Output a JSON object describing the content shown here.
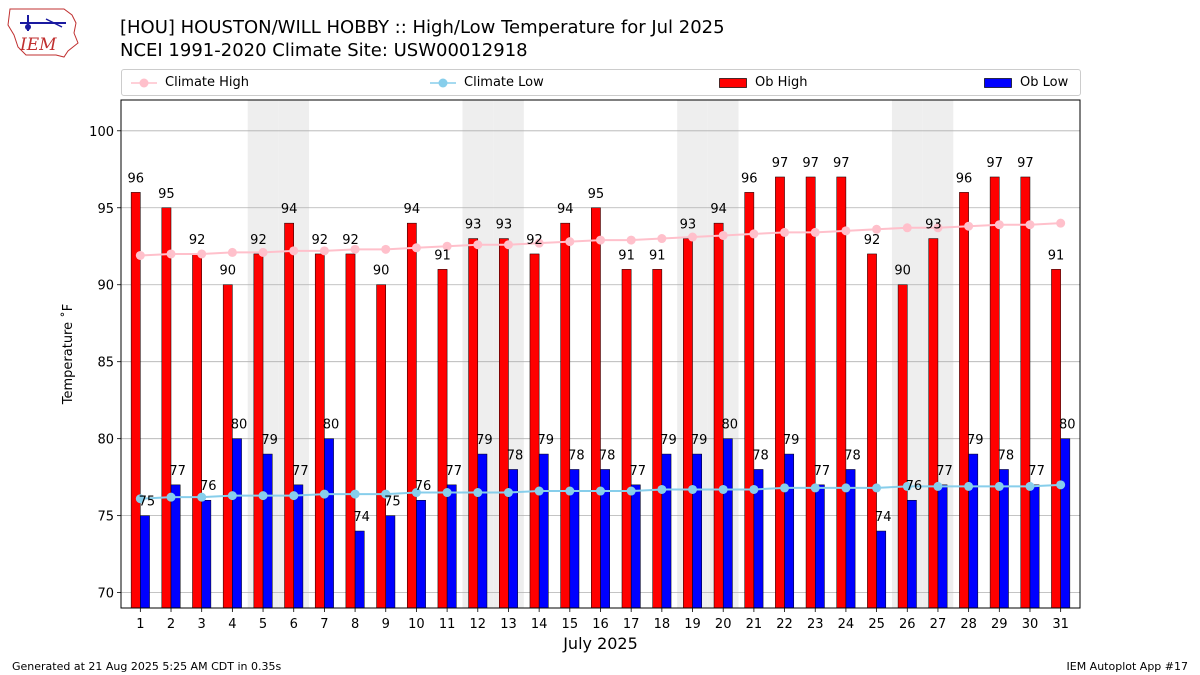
{
  "header": {
    "title_line1": "[HOU] HOUSTON/WILL HOBBY :: High/Low Temperature for Jul 2025",
    "title_line2": "NCEI 1991-2020 Climate Site: USW00012918",
    "logo_text": "IEM"
  },
  "legend": {
    "climate_high": "Climate High",
    "climate_low": "Climate Low",
    "ob_high": "Ob High",
    "ob_low": "Ob Low"
  },
  "footer": {
    "generated": "Generated at 21 Aug 2025 5:25 AM CDT in 0.35s",
    "app": "IEM Autoplot App #17"
  },
  "colors": {
    "ob_high": "#ff0000",
    "ob_low": "#0000ff",
    "climate_high": "#ffc0cb",
    "climate_low": "#87ceeb",
    "weekend_shading": "#eeeeee",
    "grid": "#b0b0b0"
  },
  "chart_data": {
    "type": "bar",
    "xlabel": "July 2025",
    "ylabel": "Temperature ˚F",
    "ylim": [
      69,
      102
    ],
    "yticks": [
      70,
      75,
      80,
      85,
      90,
      95,
      100
    ],
    "grid": "horizontal",
    "legend_position": "top",
    "categories": [
      "1",
      "2",
      "3",
      "4",
      "5",
      "6",
      "7",
      "8",
      "9",
      "10",
      "11",
      "12",
      "13",
      "14",
      "15",
      "16",
      "17",
      "18",
      "19",
      "20",
      "21",
      "22",
      "23",
      "24",
      "25",
      "26",
      "27",
      "28",
      "29",
      "30",
      "31"
    ],
    "shaded_days": [
      5,
      6,
      12,
      13,
      19,
      20,
      26,
      27
    ],
    "series": [
      {
        "name": "Ob High",
        "kind": "bar",
        "values": [
          96,
          95,
          92,
          90,
          92,
          94,
          92,
          92,
          90,
          94,
          91,
          93,
          93,
          92,
          94,
          95,
          91,
          91,
          93,
          94,
          96,
          97,
          97,
          97,
          92,
          90,
          93,
          96,
          97,
          97,
          91
        ]
      },
      {
        "name": "Ob Low",
        "kind": "bar",
        "values": [
          75,
          77,
          76,
          80,
          79,
          77,
          80,
          74,
          75,
          76,
          77,
          79,
          78,
          79,
          78,
          78,
          77,
          79,
          79,
          80,
          78,
          79,
          77,
          78,
          74,
          76,
          77,
          79,
          78,
          77,
          80
        ]
      },
      {
        "name": "Climate High",
        "kind": "line",
        "values": [
          91.9,
          92.0,
          92.0,
          92.1,
          92.1,
          92.2,
          92.2,
          92.3,
          92.3,
          92.4,
          92.5,
          92.6,
          92.6,
          92.7,
          92.8,
          92.9,
          92.9,
          93.0,
          93.1,
          93.2,
          93.3,
          93.4,
          93.4,
          93.5,
          93.6,
          93.7,
          93.7,
          93.8,
          93.9,
          93.9,
          94.0
        ]
      },
      {
        "name": "Climate Low",
        "kind": "line",
        "values": [
          76.1,
          76.2,
          76.2,
          76.3,
          76.3,
          76.3,
          76.4,
          76.4,
          76.4,
          76.5,
          76.5,
          76.5,
          76.5,
          76.6,
          76.6,
          76.6,
          76.6,
          76.7,
          76.7,
          76.7,
          76.7,
          76.8,
          76.8,
          76.8,
          76.8,
          76.9,
          76.9,
          76.9,
          76.9,
          76.9,
          77.0
        ]
      }
    ]
  }
}
